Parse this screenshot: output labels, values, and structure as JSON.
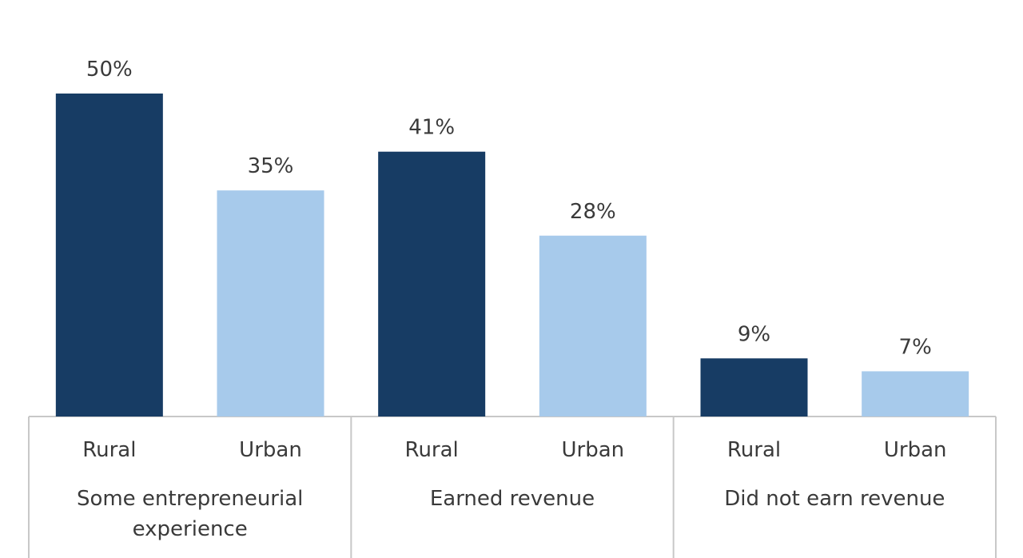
{
  "chart_data": {
    "type": "bar",
    "title": "",
    "xlabel": "",
    "ylabel": "",
    "ylim": [
      0,
      50
    ],
    "groups": [
      {
        "label_lines": [
          "Some entrepreneurial",
          "experience"
        ],
        "bars": [
          {
            "category": "Rural",
            "value": 50,
            "label": "50%"
          },
          {
            "category": "Urban",
            "value": 35,
            "label": "35%"
          }
        ]
      },
      {
        "label_lines": [
          "Earned revenue"
        ],
        "bars": [
          {
            "category": "Rural",
            "value": 41,
            "label": "41%"
          },
          {
            "category": "Urban",
            "value": 28,
            "label": "28%"
          }
        ]
      },
      {
        "label_lines": [
          "Did not earn revenue"
        ],
        "bars": [
          {
            "category": "Rural",
            "value": 9,
            "label": "9%"
          },
          {
            "category": "Urban",
            "value": 7,
            "label": "7%"
          }
        ]
      }
    ],
    "colors": {
      "Rural": "#173c64",
      "Urban": "#a7caeb"
    },
    "grid": false
  }
}
